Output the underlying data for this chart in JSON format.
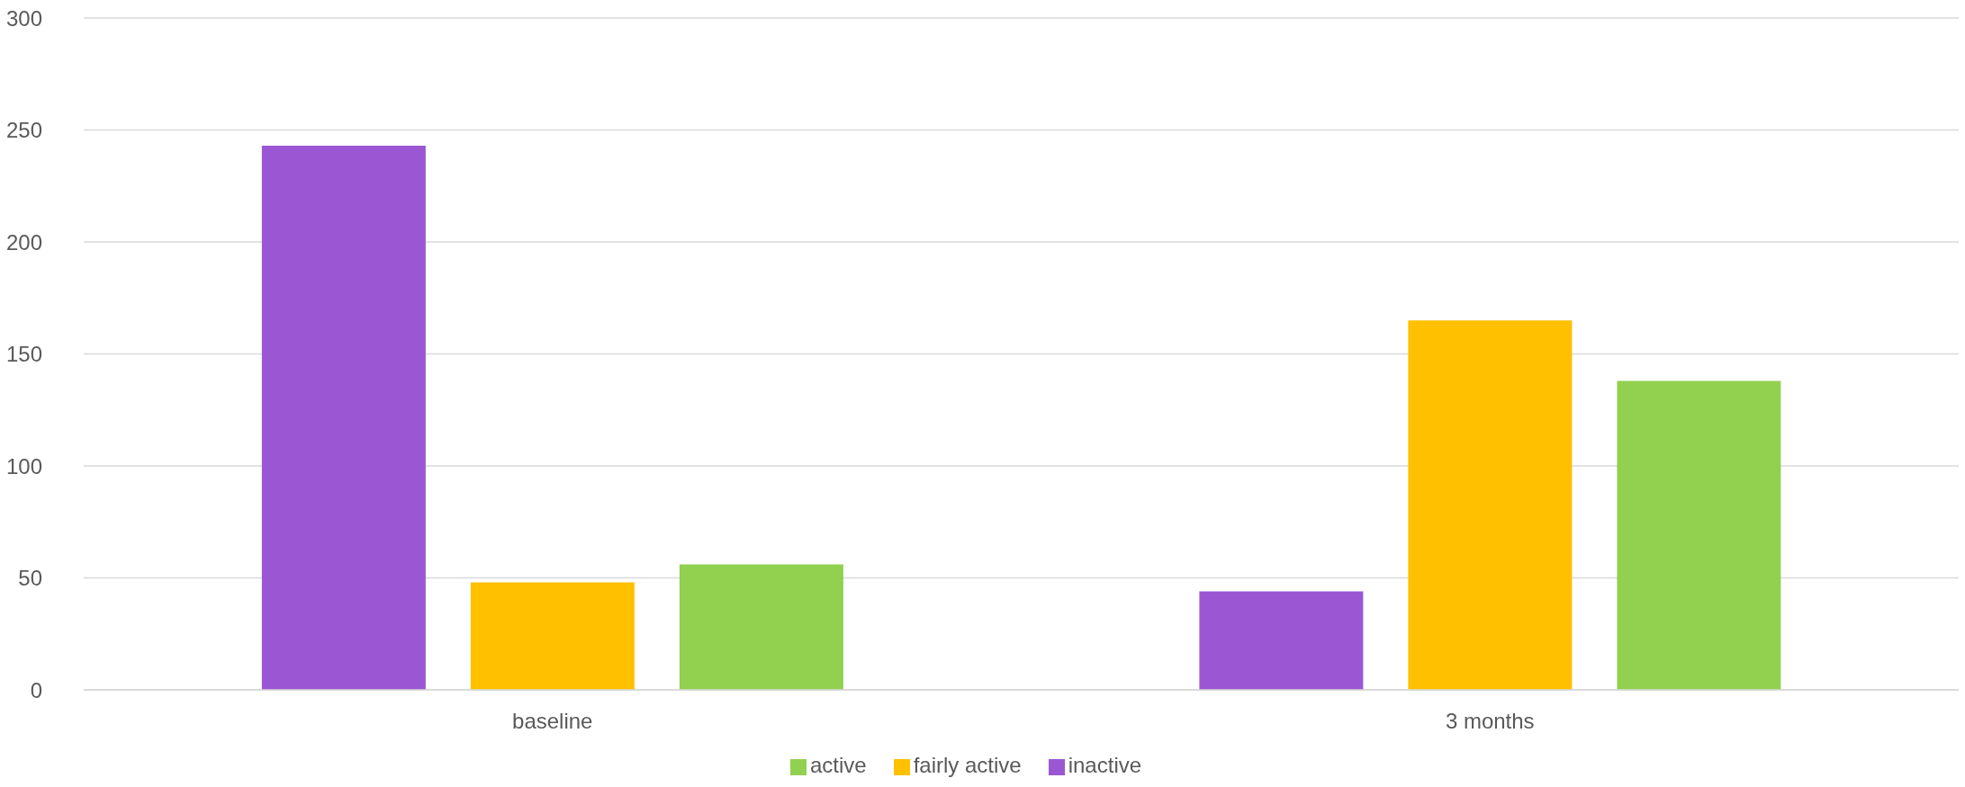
{
  "chart_data": {
    "type": "bar",
    "categories": [
      "baseline",
      "3 months"
    ],
    "series": [
      {
        "name": "inactive",
        "color": "#9b57d3",
        "values": [
          243,
          44
        ]
      },
      {
        "name": "fairly active",
        "color": "#ffc000",
        "values": [
          48,
          165
        ]
      },
      {
        "name": "active",
        "color": "#92d050",
        "values": [
          56,
          138
        ]
      }
    ],
    "ylim": [
      0,
      300
    ],
    "yticks": [
      0,
      50,
      100,
      150,
      200,
      250,
      300
    ],
    "grid": "y",
    "legend": "bottom"
  }
}
